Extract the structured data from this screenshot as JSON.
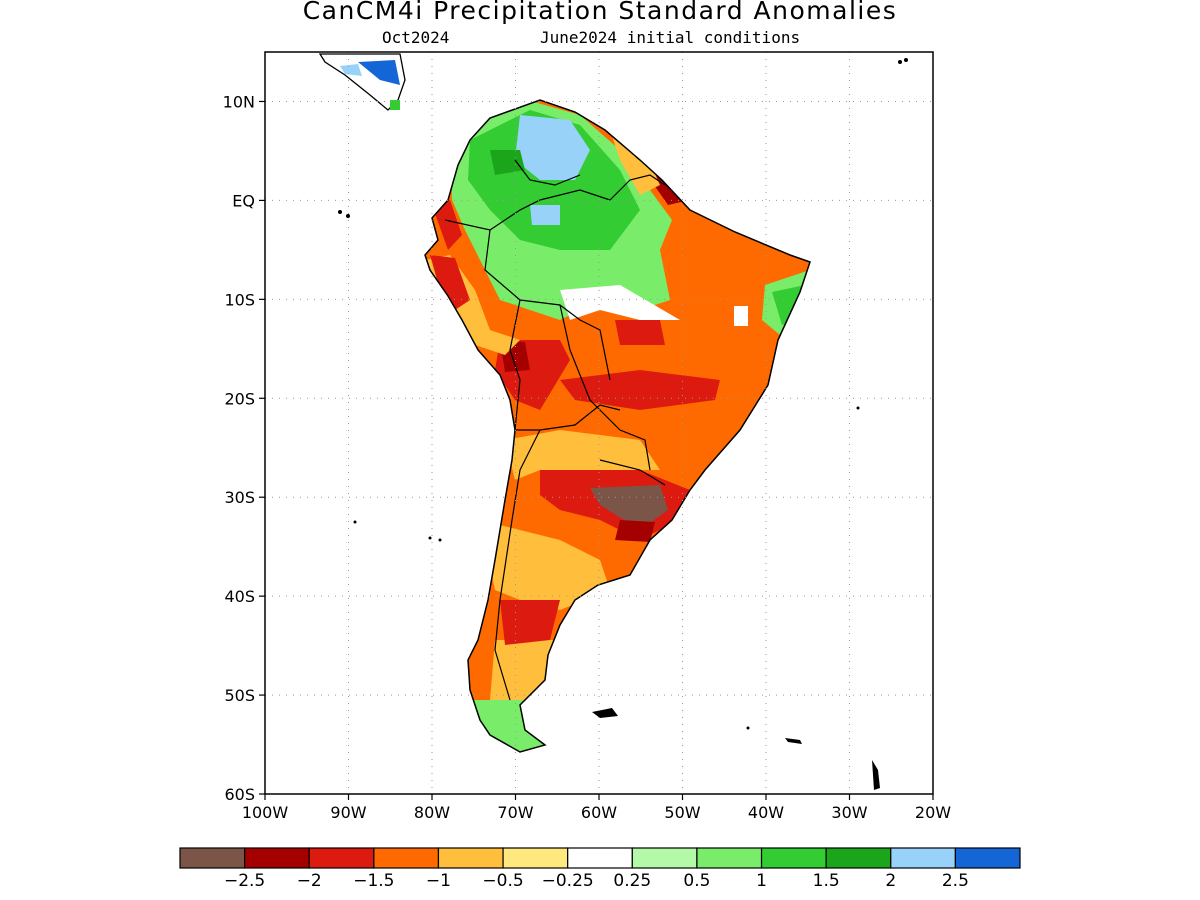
{
  "title": "CanCM4i Precipitation Standard Anomalies",
  "subtitle_left": "Oct2024",
  "subtitle_right": "June2024 initial conditions",
  "map": {
    "lon_range": [
      -100,
      -20
    ],
    "lat_range": [
      -60,
      15
    ],
    "lat_ticks": [
      {
        "value": 10,
        "label": "10N"
      },
      {
        "value": 0,
        "label": "EQ"
      },
      {
        "value": -10,
        "label": "10S"
      },
      {
        "value": -20,
        "label": "20S"
      },
      {
        "value": -30,
        "label": "30S"
      },
      {
        "value": -40,
        "label": "40S"
      },
      {
        "value": -50,
        "label": "50S"
      },
      {
        "value": -60,
        "label": "60S"
      }
    ],
    "lon_ticks": [
      {
        "value": -100,
        "label": "100W"
      },
      {
        "value": -90,
        "label": "90W"
      },
      {
        "value": -80,
        "label": "80W"
      },
      {
        "value": -70,
        "label": "70W"
      },
      {
        "value": -60,
        "label": "60W"
      },
      {
        "value": -50,
        "label": "50W"
      },
      {
        "value": -40,
        "label": "40W"
      },
      {
        "value": -30,
        "label": "30W"
      },
      {
        "value": -20,
        "label": "20W"
      }
    ],
    "grid": true
  },
  "colorbar": {
    "colors": [
      "#7a5548",
      "#a50000",
      "#dd1a0f",
      "#ff6a00",
      "#ffbf3c",
      "#ffe97f",
      "#ffffff",
      "#b3f9a8",
      "#79ed6a",
      "#33cc33",
      "#1aa51a",
      "#99d2f9",
      "#1466d6"
    ],
    "labels": [
      "-2.5",
      "-2",
      "-1.5",
      "-1",
      "-0.5",
      "-0.25",
      "0.25",
      "0.5",
      "1",
      "1.5",
      "2",
      "2.5"
    ]
  }
}
